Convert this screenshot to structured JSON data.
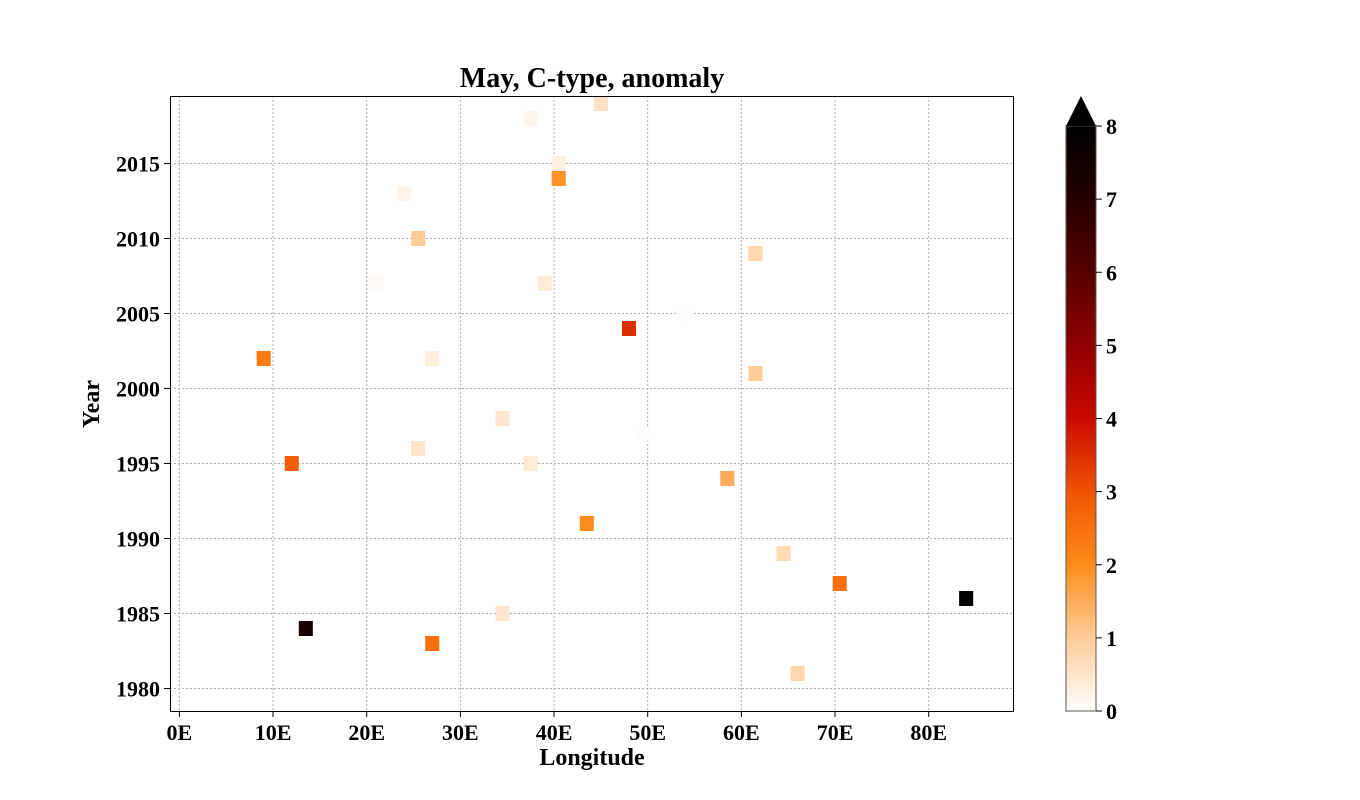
{
  "chart_data": {
    "type": "heatmap",
    "title": "May, C-type, anomaly",
    "xlabel": "Longitude",
    "ylabel": "Year",
    "xlim": [
      -1,
      89
    ],
    "ylim": [
      1978.5,
      2019.5
    ],
    "x_ticks": [
      0,
      10,
      20,
      30,
      40,
      50,
      60,
      70,
      80
    ],
    "x_tick_labels": [
      "0E",
      "10E",
      "20E",
      "30E",
      "40E",
      "50E",
      "60E",
      "70E",
      "80E"
    ],
    "y_ticks": [
      1980,
      1985,
      1990,
      1995,
      2000,
      2005,
      2010,
      2015
    ],
    "y_tick_labels": [
      "1980",
      "1985",
      "1990",
      "1995",
      "2000",
      "2005",
      "2010",
      "2015"
    ],
    "grid": true,
    "colorbar": {
      "vmin": 0,
      "vmax": 8,
      "extend": "max",
      "ticks": [
        0,
        1,
        2,
        3,
        4,
        5,
        6,
        7,
        8
      ],
      "tick_labels": [
        "0",
        "1",
        "2",
        "3",
        "4",
        "5",
        "6",
        "7",
        "8"
      ],
      "colormap": "gist_heat_r"
    },
    "cell_width_deg": 1.5,
    "points": [
      {
        "lon": 45.0,
        "year": 2019,
        "value": 0.6
      },
      {
        "lon": 37.5,
        "year": 2018,
        "value": 0.2
      },
      {
        "lon": 40.5,
        "year": 2015,
        "value": 0.3
      },
      {
        "lon": 40.5,
        "year": 2014,
        "value": 1.9
      },
      {
        "lon": 24.0,
        "year": 2013,
        "value": 0.2
      },
      {
        "lon": 25.5,
        "year": 2010,
        "value": 1.0
      },
      {
        "lon": 61.5,
        "year": 2009,
        "value": 0.8
      },
      {
        "lon": 21.0,
        "year": 2007,
        "value": 0.1
      },
      {
        "lon": 39.0,
        "year": 2007,
        "value": 0.4
      },
      {
        "lon": 54.0,
        "year": 2005,
        "value": 0.05
      },
      {
        "lon": 48.0,
        "year": 2004,
        "value": 3.5
      },
      {
        "lon": 9.0,
        "year": 2002,
        "value": 2.3
      },
      {
        "lon": 27.0,
        "year": 2002,
        "value": 0.3
      },
      {
        "lon": 61.5,
        "year": 2001,
        "value": 1.0
      },
      {
        "lon": 34.5,
        "year": 1998,
        "value": 0.5
      },
      {
        "lon": 49.5,
        "year": 1997,
        "value": 0.03
      },
      {
        "lon": 25.5,
        "year": 1996,
        "value": 0.5
      },
      {
        "lon": 12.0,
        "year": 1995,
        "value": 2.8
      },
      {
        "lon": 37.5,
        "year": 1995,
        "value": 0.4
      },
      {
        "lon": 58.5,
        "year": 1994,
        "value": 1.5
      },
      {
        "lon": 43.5,
        "year": 1991,
        "value": 2.0
      },
      {
        "lon": 64.5,
        "year": 1989,
        "value": 0.7
      },
      {
        "lon": 70.5,
        "year": 1987,
        "value": 2.5
      },
      {
        "lon": 84.0,
        "year": 1986,
        "value": 8.3
      },
      {
        "lon": 34.5,
        "year": 1985,
        "value": 0.5
      },
      {
        "lon": 13.5,
        "year": 1984,
        "value": 7.4
      },
      {
        "lon": 27.0,
        "year": 1983,
        "value": 2.5
      },
      {
        "lon": 66.0,
        "year": 1981,
        "value": 0.8
      }
    ]
  }
}
